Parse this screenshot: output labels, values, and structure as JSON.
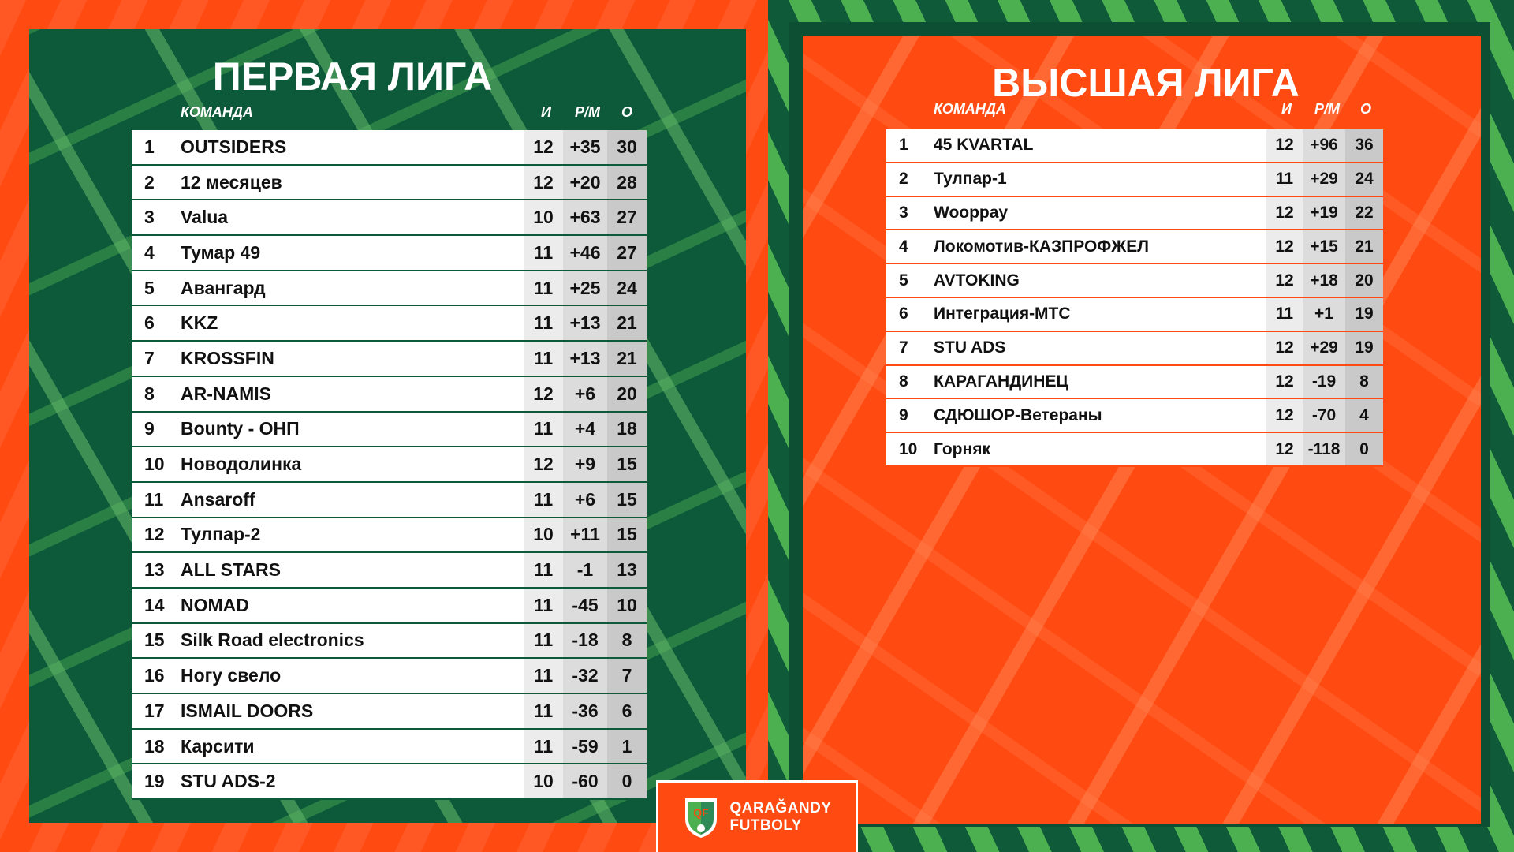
{
  "colors": {
    "orange": "#ff4a12",
    "dark_green": "#0d5a3a",
    "light_green": "#4caf50",
    "white": "#ffffff"
  },
  "left": {
    "title": "ПЕРВАЯ ЛИГА",
    "headers": {
      "team": "КОМАНДА",
      "played": "И",
      "goal_diff": "Р/М",
      "points": "О"
    },
    "rows": [
      {
        "pos": "1",
        "team": "OUTSIDERS",
        "played": "12",
        "gd": "+35",
        "pts": "30"
      },
      {
        "pos": "2",
        "team": "12 месяцев",
        "played": "12",
        "gd": "+20",
        "pts": "28"
      },
      {
        "pos": "3",
        "team": "Valua",
        "played": "10",
        "gd": "+63",
        "pts": "27"
      },
      {
        "pos": "4",
        "team": "Тумар 49",
        "played": "11",
        "gd": "+46",
        "pts": "27"
      },
      {
        "pos": "5",
        "team": "Авангард",
        "played": "11",
        "gd": "+25",
        "pts": "24"
      },
      {
        "pos": "6",
        "team": "KKZ",
        "played": "11",
        "gd": "+13",
        "pts": "21"
      },
      {
        "pos": "7",
        "team": "KROSSFIN",
        "played": "11",
        "gd": "+13",
        "pts": "21"
      },
      {
        "pos": "8",
        "team": "AR-NAMIS",
        "played": "12",
        "gd": "+6",
        "pts": "20"
      },
      {
        "pos": "9",
        "team": "Bounty - ОНП",
        "played": "11",
        "gd": "+4",
        "pts": "18"
      },
      {
        "pos": "10",
        "team": "Новодолинка",
        "played": "12",
        "gd": "+9",
        "pts": "15"
      },
      {
        "pos": "11",
        "team": "Ansaroff",
        "played": "11",
        "gd": "+6",
        "pts": "15"
      },
      {
        "pos": "12",
        "team": "Тулпар-2",
        "played": "10",
        "gd": "+11",
        "pts": "15"
      },
      {
        "pos": "13",
        "team": "ALL STARS",
        "played": "11",
        "gd": "-1",
        "pts": "13"
      },
      {
        "pos": "14",
        "team": "NOMAD",
        "played": "11",
        "gd": "-45",
        "pts": "10"
      },
      {
        "pos": "15",
        "team": "Silk Road electronics",
        "played": "11",
        "gd": "-18",
        "pts": "8"
      },
      {
        "pos": "16",
        "team": "Ногу свело",
        "played": "11",
        "gd": "-32",
        "pts": "7"
      },
      {
        "pos": "17",
        "team": "ISMAIL DOORS",
        "played": "11",
        "gd": "-36",
        "pts": "6"
      },
      {
        "pos": "18",
        "team": "Карсити",
        "played": "11",
        "gd": "-59",
        "pts": "1"
      },
      {
        "pos": "19",
        "team": "STU ADS-2",
        "played": "10",
        "gd": "-60",
        "pts": "0"
      }
    ]
  },
  "right": {
    "title": "ВЫСШАЯ ЛИГА",
    "headers": {
      "team": "КОМАНДА",
      "played": "И",
      "goal_diff": "Р/М",
      "points": "О"
    },
    "rows": [
      {
        "pos": "1",
        "team": "45 KVARTAL",
        "played": "12",
        "gd": "+96",
        "pts": "36"
      },
      {
        "pos": "2",
        "team": "Тулпар-1",
        "played": "11",
        "gd": "+29",
        "pts": "24"
      },
      {
        "pos": "3",
        "team": "Wooppay",
        "played": "12",
        "gd": "+19",
        "pts": "22"
      },
      {
        "pos": "4",
        "team": "Локомотив-КАЗПРОФЖЕЛ",
        "played": "12",
        "gd": "+15",
        "pts": "21"
      },
      {
        "pos": "5",
        "team": "AVTOKING",
        "played": "12",
        "gd": "+18",
        "pts": "20"
      },
      {
        "pos": "6",
        "team": "Интеграция-МТС",
        "played": "11",
        "gd": "+1",
        "pts": "19"
      },
      {
        "pos": "7",
        "team": "STU ADS",
        "played": "12",
        "gd": "+29",
        "pts": "19"
      },
      {
        "pos": "8",
        "team": "КАРАГАНДИНЕЦ",
        "played": "12",
        "gd": "-19",
        "pts": "8"
      },
      {
        "pos": "9",
        "team": "СДЮШОР-Ветераны",
        "played": "12",
        "gd": "-70",
        "pts": "4"
      },
      {
        "pos": "10",
        "team": "Горняк",
        "played": "12",
        "gd": "-118",
        "pts": "0"
      }
    ]
  },
  "logo": {
    "line1": "QARAĞANDY",
    "line2": "FUTBOLY",
    "shield_letters": "QF",
    "icon": "shield-logo-icon"
  }
}
